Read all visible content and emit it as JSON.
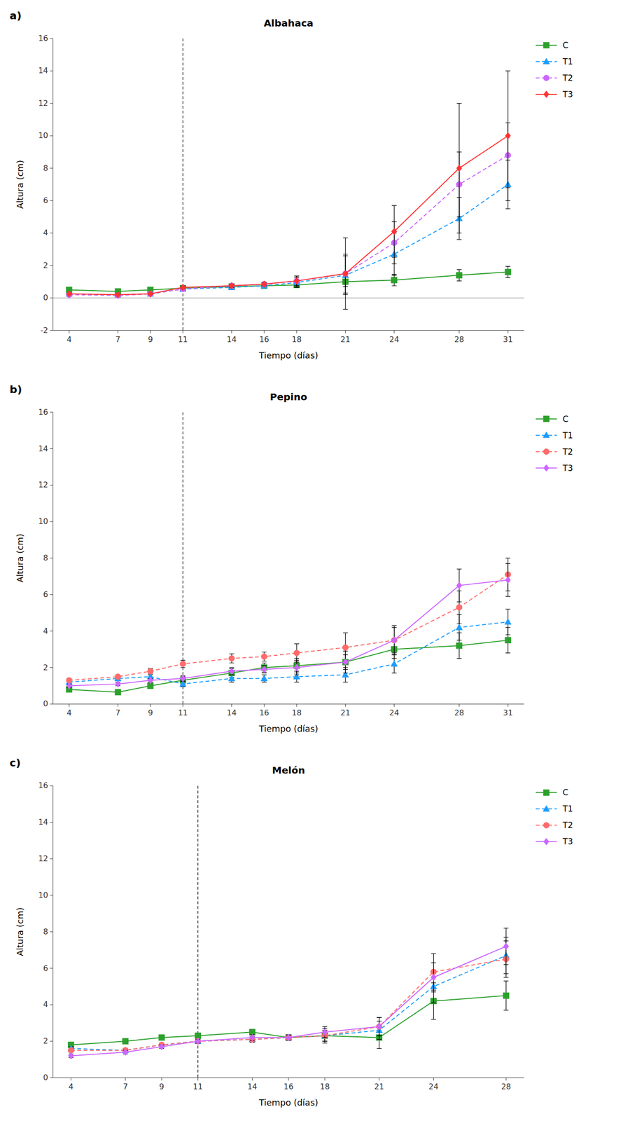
{
  "chart_data": [
    {
      "type": "line",
      "label": "a)",
      "title": "Albahaca",
      "x_label": "Tiempo (días)",
      "y_label": "Altura (cm)",
      "x": [
        4,
        7,
        9,
        11,
        14,
        16,
        18,
        21,
        24,
        28,
        31
      ],
      "xlim": [
        3,
        32
      ],
      "xticks": [
        4,
        7,
        9,
        11,
        14,
        16,
        18,
        21,
        24,
        28,
        31
      ],
      "ylim": [
        -2,
        16
      ],
      "yticks": [
        -2,
        0,
        2,
        4,
        6,
        8,
        10,
        12,
        14,
        16
      ],
      "vline_x": 11,
      "hline_y": 0,
      "grid": false,
      "legend": "right",
      "series": [
        {
          "name": "C",
          "color": "#2ca02c",
          "marker": "square",
          "line_style": "solid",
          "values": [
            0.5,
            0.4,
            0.5,
            0.6,
            0.7,
            0.75,
            0.8,
            1.0,
            1.1,
            1.4,
            1.6
          ],
          "errors": [
            0.05,
            0.05,
            0.05,
            0.1,
            0.1,
            0.1,
            0.15,
            0.3,
            0.35,
            0.35,
            0.35
          ]
        },
        {
          "name": "T1",
          "color": "#1f9dff",
          "marker": "triangle",
          "line_style": "dashed",
          "values": [
            0.25,
            0.2,
            0.25,
            0.55,
            0.65,
            0.75,
            0.95,
            1.4,
            2.7,
            4.9,
            7.0
          ],
          "errors": [
            0.05,
            0.05,
            0.05,
            0.1,
            0.1,
            0.1,
            0.3,
            1.2,
            1.3,
            1.3,
            1.5
          ]
        },
        {
          "name": "T2",
          "color": "#cc66ff",
          "marker": "circle",
          "line_style": "dashed",
          "values": [
            0.2,
            0.15,
            0.25,
            0.55,
            0.75,
            0.85,
            1.05,
            1.5,
            3.4,
            7.0,
            8.8
          ],
          "errors": [
            0.05,
            0.05,
            0.05,
            0.1,
            0.1,
            0.1,
            0.3,
            1.2,
            1.3,
            2.0,
            2.0
          ]
        },
        {
          "name": "T3",
          "color": "#ff3333",
          "marker": "diamond",
          "line_style": "solid",
          "values": [
            0.25,
            0.2,
            0.25,
            0.65,
            0.75,
            0.85,
            1.05,
            1.5,
            4.1,
            8.0,
            10.0
          ],
          "errors": [
            0.05,
            0.05,
            0.05,
            0.1,
            0.1,
            0.1,
            0.3,
            2.2,
            1.6,
            4.0,
            4.0
          ]
        }
      ]
    },
    {
      "type": "line",
      "label": "b)",
      "title": "Pepino",
      "x_label": "Tiempo (días)",
      "y_label": "Altura (cm)",
      "x": [
        4,
        7,
        9,
        11,
        14,
        16,
        18,
        21,
        24,
        28,
        31
      ],
      "xlim": [
        3,
        32
      ],
      "xticks": [
        4,
        7,
        9,
        11,
        14,
        16,
        18,
        21,
        24,
        28,
        31
      ],
      "ylim": [
        0,
        16
      ],
      "yticks": [
        0,
        2,
        4,
        6,
        8,
        10,
        12,
        14,
        16
      ],
      "vline_x": 11,
      "grid": false,
      "legend": "right",
      "series": [
        {
          "name": "C",
          "color": "#2ca02c",
          "marker": "square",
          "line_style": "solid",
          "values": [
            0.8,
            0.65,
            1.0,
            1.3,
            1.7,
            2.0,
            2.1,
            2.3,
            3.0,
            3.2,
            3.5
          ],
          "errors": [
            0.1,
            0.1,
            0.15,
            0.2,
            0.25,
            0.25,
            0.4,
            0.4,
            0.5,
            0.7,
            0.7
          ]
        },
        {
          "name": "T1",
          "color": "#1f9dff",
          "marker": "triangle",
          "line_style": "dashed",
          "values": [
            1.2,
            1.4,
            1.5,
            1.1,
            1.4,
            1.4,
            1.5,
            1.6,
            2.2,
            4.2,
            4.5
          ],
          "errors": [
            0.1,
            0.1,
            0.1,
            0.15,
            0.2,
            0.2,
            0.3,
            0.4,
            0.5,
            0.7,
            0.7
          ]
        },
        {
          "name": "T2",
          "color": "#ff6b6b",
          "marker": "circle",
          "line_style": "dashed",
          "values": [
            1.3,
            1.5,
            1.8,
            2.2,
            2.5,
            2.6,
            2.8,
            3.1,
            3.5,
            5.3,
            7.1
          ],
          "errors": [
            0.1,
            0.1,
            0.15,
            0.2,
            0.25,
            0.25,
            0.5,
            0.8,
            0.8,
            0.9,
            0.9
          ]
        },
        {
          "name": "T3",
          "color": "#cc66ff",
          "marker": "diamond",
          "line_style": "solid",
          "values": [
            1.0,
            1.1,
            1.3,
            1.4,
            1.8,
            1.9,
            2.0,
            2.3,
            3.5,
            6.5,
            6.8
          ],
          "errors": [
            0.1,
            0.1,
            0.1,
            0.15,
            0.2,
            0.2,
            0.4,
            0.6,
            0.7,
            0.9,
            0.9
          ]
        }
      ]
    },
    {
      "type": "line",
      "label": "c)",
      "title": "Melón",
      "x_label": "Tiempo (días)",
      "y_label": "Altura (cm)",
      "x": [
        4,
        7,
        9,
        11,
        14,
        16,
        18,
        21,
        24,
        28
      ],
      "xlim": [
        3,
        29
      ],
      "xticks": [
        4,
        7,
        9,
        11,
        14,
        16,
        18,
        21,
        24,
        28
      ],
      "ylim": [
        0,
        16
      ],
      "yticks": [
        0,
        2,
        4,
        6,
        8,
        10,
        12,
        14,
        16
      ],
      "vline_x": 11,
      "grid": false,
      "legend": "right",
      "series": [
        {
          "name": "C",
          "color": "#2ca02c",
          "marker": "square",
          "line_style": "solid",
          "values": [
            1.8,
            2.0,
            2.2,
            2.3,
            2.5,
            2.2,
            2.3,
            2.2,
            4.2,
            4.5
          ],
          "errors": [
            0.1,
            0.1,
            0.1,
            0.1,
            0.15,
            0.15,
            0.4,
            0.6,
            1.0,
            0.8
          ]
        },
        {
          "name": "T1",
          "color": "#1f9dff",
          "marker": "triangle",
          "line_style": "dashed",
          "values": [
            1.6,
            1.5,
            1.8,
            2.0,
            2.1,
            2.2,
            2.3,
            2.6,
            5.0,
            6.7
          ],
          "errors": [
            0.1,
            0.1,
            0.1,
            0.1,
            0.15,
            0.15,
            0.3,
            0.5,
            0.9,
            1.0
          ]
        },
        {
          "name": "T2",
          "color": "#ff6b6b",
          "marker": "circle",
          "line_style": "dashed",
          "values": [
            1.5,
            1.5,
            1.8,
            2.0,
            2.1,
            2.2,
            2.3,
            2.8,
            5.8,
            6.5
          ],
          "errors": [
            0.1,
            0.1,
            0.1,
            0.1,
            0.15,
            0.15,
            0.3,
            0.5,
            1.0,
            1.0
          ]
        },
        {
          "name": "T3",
          "color": "#cc66ff",
          "marker": "diamond",
          "line_style": "solid",
          "values": [
            1.2,
            1.4,
            1.7,
            2.0,
            2.2,
            2.2,
            2.5,
            2.8,
            5.5,
            7.2
          ],
          "errors": [
            0.1,
            0.1,
            0.1,
            0.1,
            0.15,
            0.15,
            0.3,
            0.5,
            0.8,
            1.0
          ]
        }
      ]
    }
  ]
}
